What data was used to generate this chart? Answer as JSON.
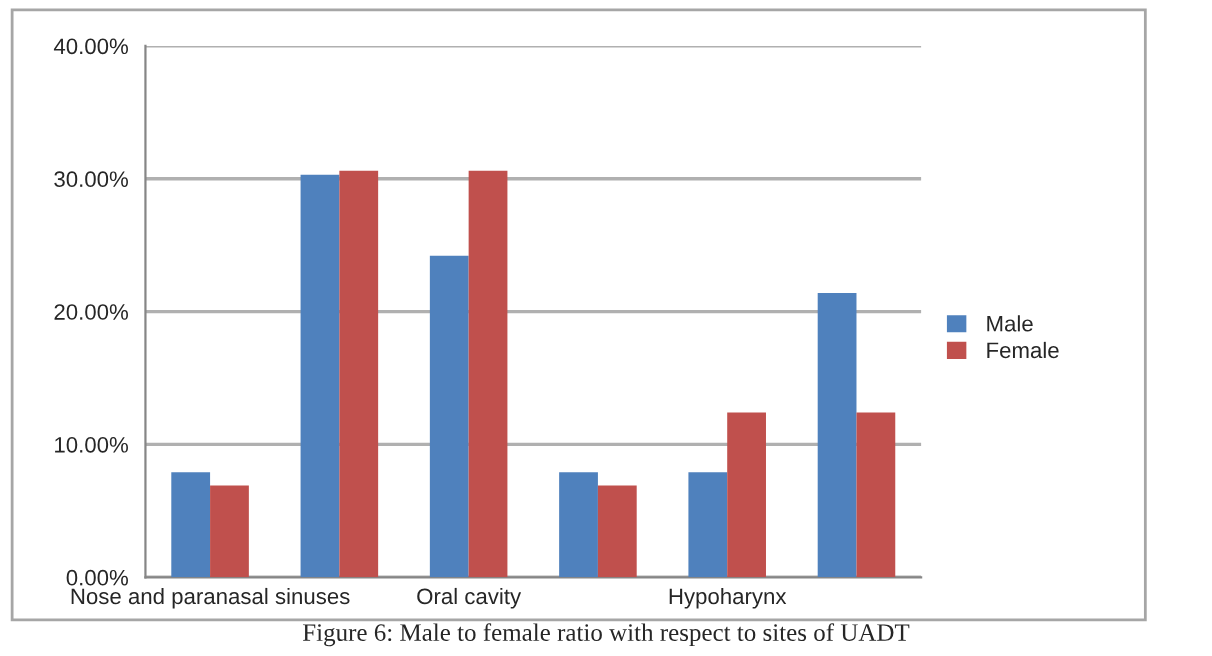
{
  "chart_data": {
    "type": "bar",
    "title": "Figure 6: Male to female ratio with respect to sites of UADT",
    "categories": [
      "Nose and paranasal sinuses",
      null,
      "Oral cavity",
      null,
      "Hypoharynx",
      null
    ],
    "series": [
      {
        "name": "Male",
        "color": "#4f81bd",
        "values": [
          7.9,
          30.3,
          24.2,
          7.9,
          7.9,
          21.4
        ]
      },
      {
        "name": "Female",
        "color": "#c0504d",
        "values": [
          6.9,
          30.6,
          30.6,
          6.9,
          12.4,
          12.4
        ]
      }
    ],
    "ylim": [
      0,
      40
    ],
    "yticks": [
      {
        "value": 0,
        "label": "0.00%"
      },
      {
        "value": 10,
        "label": "10.00%"
      },
      {
        "value": 20,
        "label": "20.00%"
      },
      {
        "value": 30,
        "label": "30.00%"
      },
      {
        "value": 40,
        "label": "40.00%"
      }
    ],
    "grid": "y",
    "legend": "right"
  }
}
